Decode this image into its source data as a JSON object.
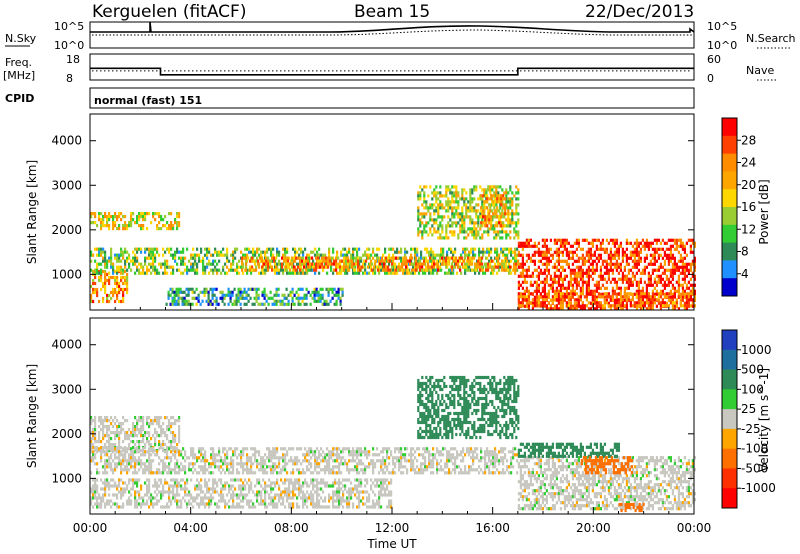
{
  "header": {
    "station": "Kerguelen (fitACF)",
    "beam": "Beam 15",
    "date": "22/Dec/2013"
  },
  "strips": {
    "nsky_label": "N.Sky",
    "nsky_ticks": [
      "10^5",
      "10^0"
    ],
    "nsearch_label": "N.Search",
    "nsearch_ticks": [
      "10^5",
      "10^0"
    ],
    "freq_label": "Freq.",
    "freq_unit": "[MHz]",
    "freq_ticks": [
      "18",
      "8"
    ],
    "nave_label": "Nave",
    "nave_ticks": [
      "60",
      "0"
    ],
    "cpid_label": "CPID",
    "cpid_value": "normal (fast) 151",
    "freq_series": {
      "segments": [
        {
          "x": [
            0.0,
            2.8
          ],
          "y": 12.5
        },
        {
          "x": [
            2.8,
            17.0
          ],
          "y": 10.0
        },
        {
          "x": [
            17.0,
            24.0
          ],
          "y": 12.5
        }
      ],
      "nave_dotted": 11.5
    }
  },
  "chart_data": [
    {
      "type": "heatmap",
      "parameter": "power",
      "ylabel": "Slant Range [km]",
      "yticks": [
        "1000",
        "2000",
        "3000",
        "4000"
      ],
      "ylim": [
        200,
        4600
      ],
      "xlim": [
        0,
        24
      ],
      "colorbar": {
        "label": "Power [dB]",
        "ticks": [
          "28",
          "24",
          "20",
          "16",
          "12",
          "8",
          "4"
        ],
        "colors": [
          "#ff0000",
          "#ff4000",
          "#ff8c00",
          "#ffa500",
          "#ffd700",
          "#9acd32",
          "#32cd32",
          "#2e8b57",
          "#1e90ff",
          "#0000cd"
        ]
      },
      "bands": [
        {
          "t": [
            0,
            3.5
          ],
          "r": [
            2000,
            2400
          ],
          "v": 18
        },
        {
          "t": [
            0,
            1.5
          ],
          "r": [
            400,
            1100
          ],
          "v": 22
        },
        {
          "t": [
            0,
            17
          ],
          "r": [
            1000,
            1600
          ],
          "v": 14
        },
        {
          "t": [
            6,
            17
          ],
          "r": [
            1100,
            1400
          ],
          "v": 22
        },
        {
          "t": [
            3,
            10
          ],
          "r": [
            350,
            700
          ],
          "v": 10
        },
        {
          "t": [
            13,
            17
          ],
          "r": [
            1800,
            3000
          ],
          "v": 16
        },
        {
          "t": [
            15.5,
            16.5
          ],
          "r": [
            2100,
            2800
          ],
          "v": 22
        },
        {
          "t": [
            17,
            24
          ],
          "r": [
            300,
            1800
          ],
          "v": 28
        },
        {
          "t": [
            17,
            24
          ],
          "r": [
            200,
            600
          ],
          "v": 26
        }
      ]
    },
    {
      "type": "heatmap",
      "parameter": "velocity",
      "xlabel": "Time UT",
      "ylabel": "Slant Range [km]",
      "xticks": [
        "00:00",
        "04:00",
        "08:00",
        "12:00",
        "16:00",
        "20:00",
        "00:00"
      ],
      "yticks": [
        "1000",
        "2000",
        "3000",
        "4000"
      ],
      "ylim": [
        200,
        4600
      ],
      "xlim": [
        0,
        24
      ],
      "colorbar": {
        "label": "Velocity [m s^-1]",
        "ticks": [
          "1000",
          "500",
          "100",
          "25",
          "-25",
          "-100",
          "-500",
          "-1000"
        ],
        "colors": [
          "#2040c0",
          "#1e6e9e",
          "#2e8b57",
          "#32cd32",
          "#c8c8c0",
          "#ffa500",
          "#ff7000",
          "#ff3000",
          "#ff0000"
        ]
      },
      "bands": [
        {
          "t": [
            0,
            3.5
          ],
          "r": [
            1600,
            2400
          ],
          "v": 0
        },
        {
          "t": [
            0,
            17
          ],
          "r": [
            1100,
            1700
          ],
          "v": 0
        },
        {
          "t": [
            0,
            12
          ],
          "r": [
            350,
            1000
          ],
          "v": 0
        },
        {
          "t": [
            13,
            17
          ],
          "r": [
            1900,
            3300
          ],
          "v": 120
        },
        {
          "t": [
            17,
            24
          ],
          "r": [
            300,
            1500
          ],
          "v": 0
        },
        {
          "t": [
            17,
            21
          ],
          "r": [
            1500,
            1800
          ],
          "v": 150
        },
        {
          "t": [
            19.5,
            21.5
          ],
          "r": [
            1100,
            1500
          ],
          "v": -300
        },
        {
          "t": [
            21,
            22
          ],
          "r": [
            250,
            450
          ],
          "v": -300
        }
      ]
    }
  ]
}
